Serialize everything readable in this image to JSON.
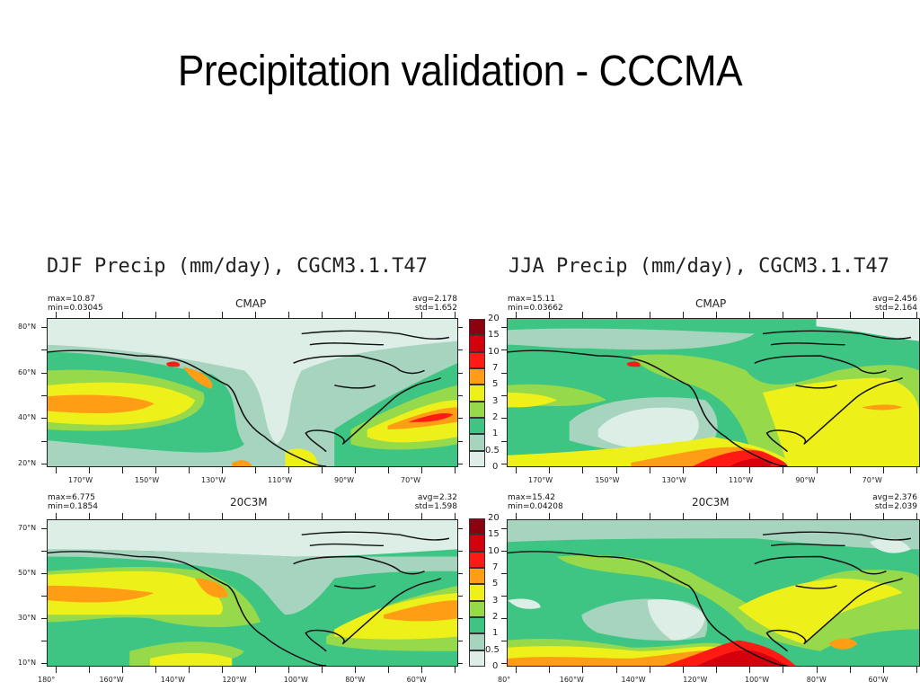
{
  "slide_title": "Precipitation validation - CCCMA",
  "colors": {
    "levels": [
      "#dceee6",
      "#a7d4bf",
      "#3ec583",
      "#96d94a",
      "#eef01a",
      "#ff9e14",
      "#ff1b14",
      "#d4000c",
      "#8c0010"
    ],
    "coast": "#111111"
  },
  "chart_data": [
    {
      "type": "heatmap",
      "title": "DJF Precip (mm/day), CGCM3.1.T47",
      "panel": "CMAP",
      "stats": {
        "max": "max=10.87",
        "min": "min=0.03045",
        "avg": "avg=2.178",
        "std": "std=1.652"
      },
      "x_ticks": [
        "170°W",
        "150°W",
        "130°W",
        "110°W",
        "90°W",
        "70°W"
      ],
      "y_ticks": [
        "80°N",
        "60°N",
        "40°N",
        "20°N"
      ],
      "colorbar": {
        "levels": [
          "0",
          "0.5",
          "1",
          "2",
          "3",
          "5",
          "7",
          "10",
          "15",
          "20"
        ],
        "units": "mm/day"
      }
    },
    {
      "type": "heatmap",
      "title": "JJA Precip (mm/day), CGCM3.1.T47",
      "panel": "CMAP",
      "stats": {
        "max": "max=15.11",
        "min": "min=0.03662",
        "avg": "avg=2.456",
        "std": "std=2.164"
      },
      "x_ticks": [
        "170°W",
        "150°W",
        "130°W",
        "110°W",
        "90°W",
        "70°W"
      ],
      "y_ticks": [],
      "colorbar": {
        "levels": [
          "0",
          "0.5",
          "1",
          "2",
          "3",
          "5",
          "7",
          "10",
          "15",
          "20"
        ],
        "units": "mm/day"
      }
    },
    {
      "type": "heatmap",
      "title": "",
      "panel": "20C3M",
      "stats": {
        "max": "max=6.775",
        "min": "min=0.1854",
        "avg": "avg=2.32",
        "std": "std=1.598"
      },
      "x_ticks": [
        "180°",
        "160°W",
        "140°W",
        "120°W",
        "100°W",
        "80°W",
        "60°W"
      ],
      "y_ticks": [
        "70°N",
        "50°N",
        "30°N",
        "10°N"
      ],
      "colorbar": {
        "levels": [
          "0",
          "0.5",
          "1",
          "2",
          "3",
          "5",
          "7",
          "10",
          "15",
          "20"
        ],
        "units": "mm/day"
      }
    },
    {
      "type": "heatmap",
      "title": "",
      "panel": "20C3M",
      "stats": {
        "max": "max=15.42",
        "min": "min=0.04208",
        "avg": "avg=2.376",
        "std": "std=2.039"
      },
      "x_ticks": [
        "80°",
        "160°W",
        "140°W",
        "120°W",
        "100°W",
        "80°W",
        "60°W"
      ],
      "y_ticks": [],
      "colorbar": {
        "levels": [
          "0",
          "0.5",
          "1",
          "2",
          "3",
          "5",
          "7",
          "10",
          "15",
          "20"
        ],
        "units": "mm/day"
      }
    }
  ]
}
